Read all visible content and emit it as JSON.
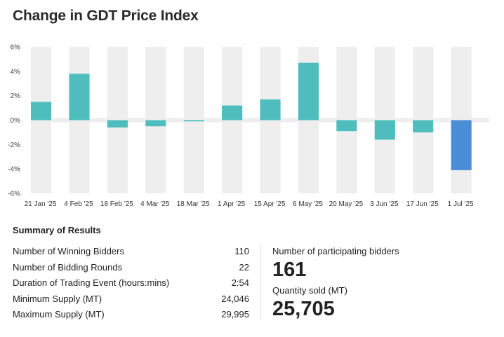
{
  "title": "Change in GDT Price Index",
  "chart_data": {
    "type": "bar",
    "title": "Change in GDT Price Index",
    "categories": [
      "21 Jan '25",
      "4 Feb '25",
      "18 Feb '25",
      "4 Mar '25",
      "18 Mar '25",
      "1 Apr '25",
      "15 Apr '25",
      "6 May '25",
      "20 May '25",
      "3 Jun '25",
      "17 Jun '25",
      "1 Jul '25"
    ],
    "values": [
      1.5,
      3.8,
      -0.6,
      -0.5,
      -0.1,
      1.2,
      1.7,
      4.7,
      -0.9,
      -1.6,
      -1.0,
      -4.1
    ],
    "ylim": [
      -6,
      6
    ],
    "yticks": [
      6,
      4,
      2,
      0,
      -2,
      -4,
      -6
    ],
    "ytick_labels": [
      "6%",
      "4%",
      "2%",
      "0%",
      "-2%",
      "-4%",
      "-6%"
    ],
    "colors": {
      "default": "#4fbdbd",
      "latest": "#4a8ed8",
      "band": "#eeeeee"
    },
    "highlight_index": 11,
    "grid": false,
    "legend": "none"
  },
  "summary": {
    "heading": "Summary of Results",
    "rows": [
      {
        "label": "Number of Winning Bidders",
        "value": "110"
      },
      {
        "label": "Number of Bidding Rounds",
        "value": "22"
      },
      {
        "label": "Duration of Trading Event (hours:mins)",
        "value": "2:54"
      },
      {
        "label": "Minimum Supply (MT)",
        "value": "24,046"
      },
      {
        "label": "Maximum Supply (MT)",
        "value": "29,995"
      }
    ],
    "participating_label": "Number of participating bidders",
    "participating_value": "161",
    "quantity_label": "Quantity sold (MT)",
    "quantity_value": "25,705"
  }
}
